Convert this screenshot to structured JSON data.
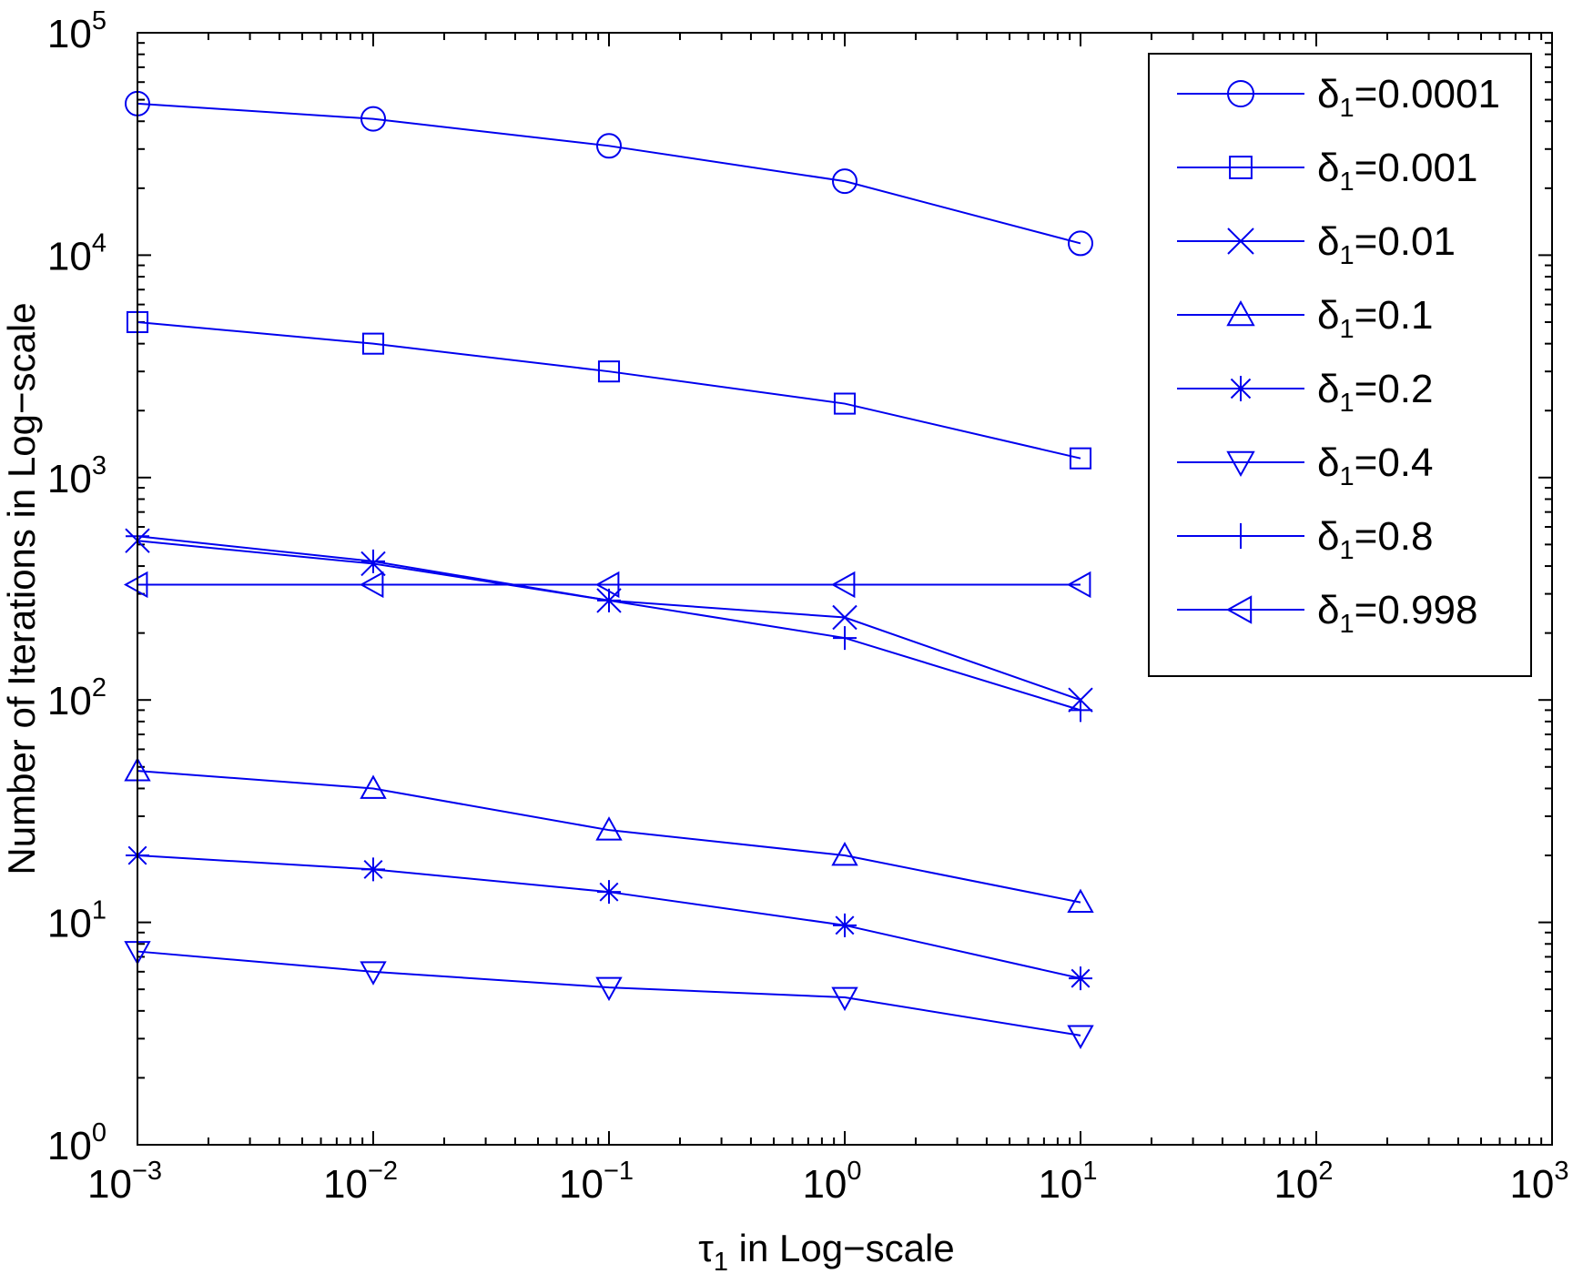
{
  "chart_data": {
    "type": "line",
    "title": "",
    "xlabel": {
      "symbol": "τ",
      "subscript": "1",
      "text": " in Log−scale"
    },
    "ylabel": "Number of Iterations in Log−scale",
    "xscale": "log",
    "yscale": "log",
    "xlim": [
      0.001,
      1000
    ],
    "ylim": [
      1,
      100000
    ],
    "x_tick_labels": [
      {
        "base": "10",
        "exp": "−3"
      },
      {
        "base": "10",
        "exp": "−2"
      },
      {
        "base": "10",
        "exp": "−1"
      },
      {
        "base": "10",
        "exp": "0"
      },
      {
        "base": "10",
        "exp": "1"
      },
      {
        "base": "10",
        "exp": "2"
      },
      {
        "base": "10",
        "exp": "3"
      }
    ],
    "y_tick_labels": [
      {
        "base": "10",
        "exp": "0"
      },
      {
        "base": "10",
        "exp": "1"
      },
      {
        "base": "10",
        "exp": "2"
      },
      {
        "base": "10",
        "exp": "3"
      },
      {
        "base": "10",
        "exp": "4"
      },
      {
        "base": "10",
        "exp": "5"
      }
    ],
    "legend_position": "top-right",
    "grid": false,
    "x": [
      0.001,
      0.01,
      0.1,
      1,
      10
    ],
    "series": [
      {
        "name": "δ1=0.0001",
        "symbol": "δ",
        "sub": "1",
        "rest": "=0.0001",
        "marker": "circle",
        "values": [
          48000,
          41000,
          31000,
          21500,
          11300
        ]
      },
      {
        "name": "δ1=0.001",
        "symbol": "δ",
        "sub": "1",
        "rest": "=0.001",
        "marker": "square",
        "values": [
          5000,
          4000,
          3000,
          2150,
          1220
        ]
      },
      {
        "name": "δ1=0.01",
        "symbol": "δ",
        "sub": "1",
        "rest": "=0.01",
        "marker": "x",
        "values": [
          520,
          410,
          280,
          235,
          100
        ]
      },
      {
        "name": "δ1=0.1",
        "symbol": "δ",
        "sub": "1",
        "rest": "=0.1",
        "marker": "triangle-up",
        "values": [
          48,
          40,
          26,
          20,
          12.3
        ]
      },
      {
        "name": "δ1=0.2",
        "symbol": "δ",
        "sub": "1",
        "rest": "=0.2",
        "marker": "asterisk",
        "values": [
          20,
          17.3,
          13.7,
          9.7,
          5.6
        ]
      },
      {
        "name": "δ1=0.4",
        "symbol": "δ",
        "sub": "1",
        "rest": "=0.4",
        "marker": "triangle-down",
        "values": [
          7.4,
          6.0,
          5.1,
          4.6,
          3.1
        ]
      },
      {
        "name": "δ1=0.8",
        "symbol": "δ",
        "sub": "1",
        "rest": "=0.8",
        "marker": "plus",
        "values": [
          545,
          420,
          280,
          190,
          90
        ]
      },
      {
        "name": "δ1=0.998",
        "symbol": "δ",
        "sub": "1",
        "rest": "=0.998",
        "marker": "triangle-left",
        "values": [
          330,
          330,
          330,
          330,
          330
        ]
      }
    ],
    "colors": {
      "line": "#0000ee",
      "axis": "#000000",
      "background": "#ffffff"
    }
  }
}
